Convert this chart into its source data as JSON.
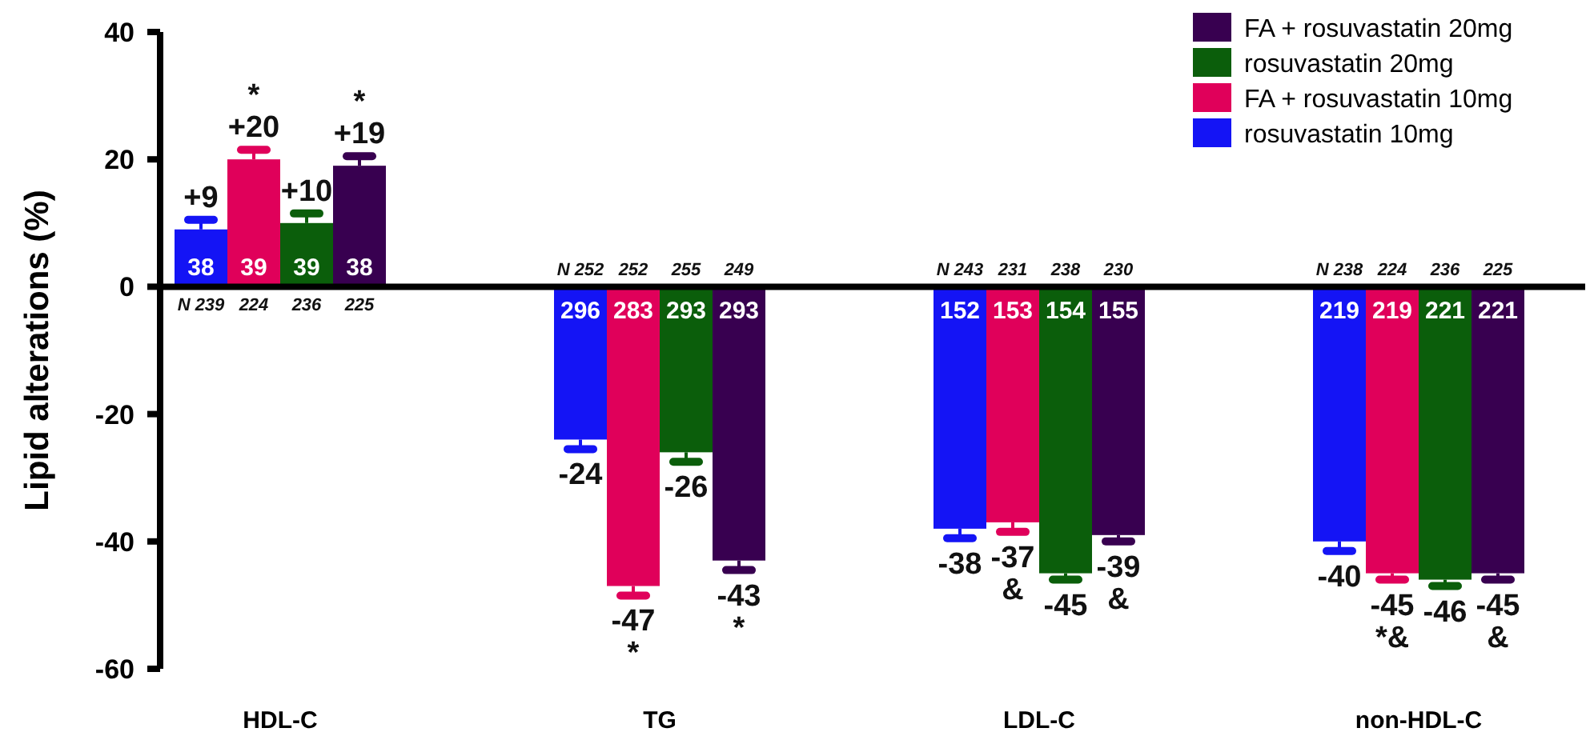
{
  "chart_data": {
    "type": "bar",
    "ylabel": "Lipid alterations (%)",
    "categories": [
      "HDL-C",
      "TG",
      "LDL-C",
      "non-HDL-C"
    ],
    "ylim": [
      -60,
      40
    ],
    "yticks": [
      -60,
      -40,
      -20,
      0,
      20,
      40
    ],
    "legend": "top right",
    "series": [
      {
        "name": "rosuvastatin 10mg",
        "color": "#1414f5",
        "values": [
          9,
          -24,
          -38,
          -40
        ],
        "errors": [
          [
            9,
            10.5
          ],
          [
            -25.5,
            -24
          ],
          [
            -39.5,
            -38
          ],
          [
            -41.5,
            -40
          ]
        ],
        "value_labels": [
          "+9",
          "-24",
          "-38",
          "-40"
        ]
      },
      {
        "name": "FA + rosuvastatin 10mg",
        "color": "#e0005a",
        "values": [
          20,
          -47,
          -37,
          -45
        ],
        "errors": [
          [
            20,
            21.5
          ],
          [
            -48.5,
            -47
          ],
          [
            -38.5,
            -37
          ],
          [
            -46,
            -45
          ]
        ],
        "value_labels": [
          "*\n+20",
          "-47\n*",
          "-37\n&",
          "-45\n*&"
        ]
      },
      {
        "name": "rosuvastatin 20mg",
        "color": "#0b5e0b",
        "values": [
          10,
          -26,
          -45,
          -46
        ],
        "errors": [
          [
            10,
            11.5
          ],
          [
            -27.5,
            -26
          ],
          [
            -46,
            -45
          ],
          [
            -47,
            -46
          ]
        ],
        "value_labels": [
          "+10",
          "-26",
          "-45",
          "-46"
        ]
      },
      {
        "name": "FA + rosuvastatin 20mg",
        "color": "#380050",
        "values": [
          19,
          -43,
          -39,
          -45
        ],
        "errors": [
          [
            19,
            20.5
          ],
          [
            -44.5,
            -43
          ],
          [
            -40,
            -39
          ],
          [
            -46,
            -45
          ]
        ],
        "value_labels": [
          "*\n+19",
          "-43\n*",
          "-39\n&",
          "-45\n&"
        ]
      }
    ],
    "annotations": [
      "38",
      "296",
      "152",
      "219",
      "39",
      "283",
      "153",
      "219",
      "39",
      "293",
      "154",
      "221",
      "38",
      "293",
      "155",
      "221",
      "N 239",
      "N 252",
      "N 243",
      "N 238",
      "224",
      "252",
      "231",
      "224",
      "236",
      "255",
      "238",
      "236",
      "225",
      "249",
      "230",
      "225"
    ]
  }
}
